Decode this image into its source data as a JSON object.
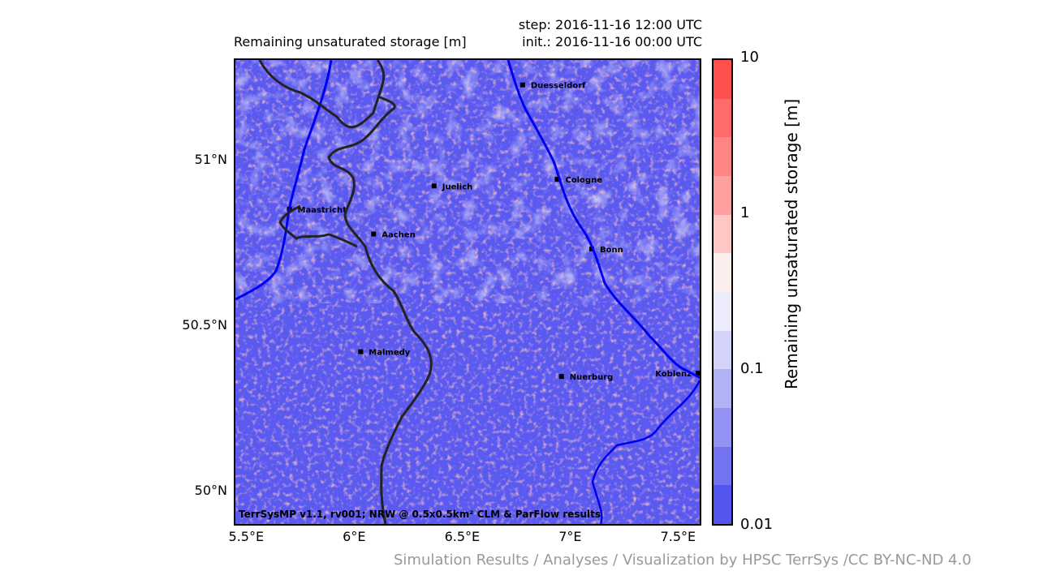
{
  "header": {
    "title": "Remaining unsaturated storage [m]",
    "step": "step: 2016-11-16 12:00 UTC",
    "init": "init.: 2016-11-16 00:00 UTC"
  },
  "map": {
    "lon_range": [
      5.45,
      7.6
    ],
    "lat_range": [
      49.9,
      51.3
    ],
    "y_ticks": [
      {
        "label": "51°N",
        "lat": 51.0
      },
      {
        "label": "50.5°N",
        "lat": 50.5
      },
      {
        "label": "50°N",
        "lat": 50.0
      }
    ],
    "x_ticks": [
      {
        "label": "5.5°E",
        "lon": 5.5
      },
      {
        "label": "6°E",
        "lon": 6.0
      },
      {
        "label": "6.5°E",
        "lon": 6.5
      },
      {
        "label": "7°E",
        "lon": 7.0
      },
      {
        "label": "7.5°E",
        "lon": 7.5
      }
    ],
    "cities": [
      {
        "name": "Duesseldorf",
        "lon": 6.78,
        "lat": 51.225
      },
      {
        "name": "Cologne",
        "lon": 6.94,
        "lat": 50.94
      },
      {
        "name": "Juelich",
        "lon": 6.37,
        "lat": 50.92
      },
      {
        "name": "Maastricht",
        "lon": 5.7,
        "lat": 50.85
      },
      {
        "name": "Aachen",
        "lon": 6.09,
        "lat": 50.775
      },
      {
        "name": "Bonn",
        "lon": 7.1,
        "lat": 50.73
      },
      {
        "name": "Malmedy",
        "lon": 6.03,
        "lat": 50.42
      },
      {
        "name": "Nuerburg",
        "lon": 6.96,
        "lat": 50.345
      },
      {
        "name": "Koblenz",
        "lon": 7.6,
        "lat": 50.355
      }
    ],
    "credit": "TerrSysMP v1.1, rv001; NRW @ 0.5x0.5km² CLM & ParFlow results"
  },
  "colorbar": {
    "label": "Remaining unsaturated storage [m]",
    "colors": [
      "#ff5050",
      "#ff6b6b",
      "#ff8585",
      "#ffa0a0",
      "#ffc6c6",
      "#fdeeee",
      "#ececfd",
      "#d4d4fa",
      "#b2b2f7",
      "#9393f4",
      "#7373f1",
      "#5454ee"
    ],
    "ticks": [
      {
        "label": "10",
        "frac": 0.0
      },
      {
        "label": "1",
        "frac": 0.333
      },
      {
        "label": "0.1",
        "frac": 0.667
      },
      {
        "label": "0.01",
        "frac": 1.0
      }
    ]
  },
  "footer": "Simulation Results / Analyses / Visualization by HPSC TerrSys /CC BY-NC-ND 4.0"
}
